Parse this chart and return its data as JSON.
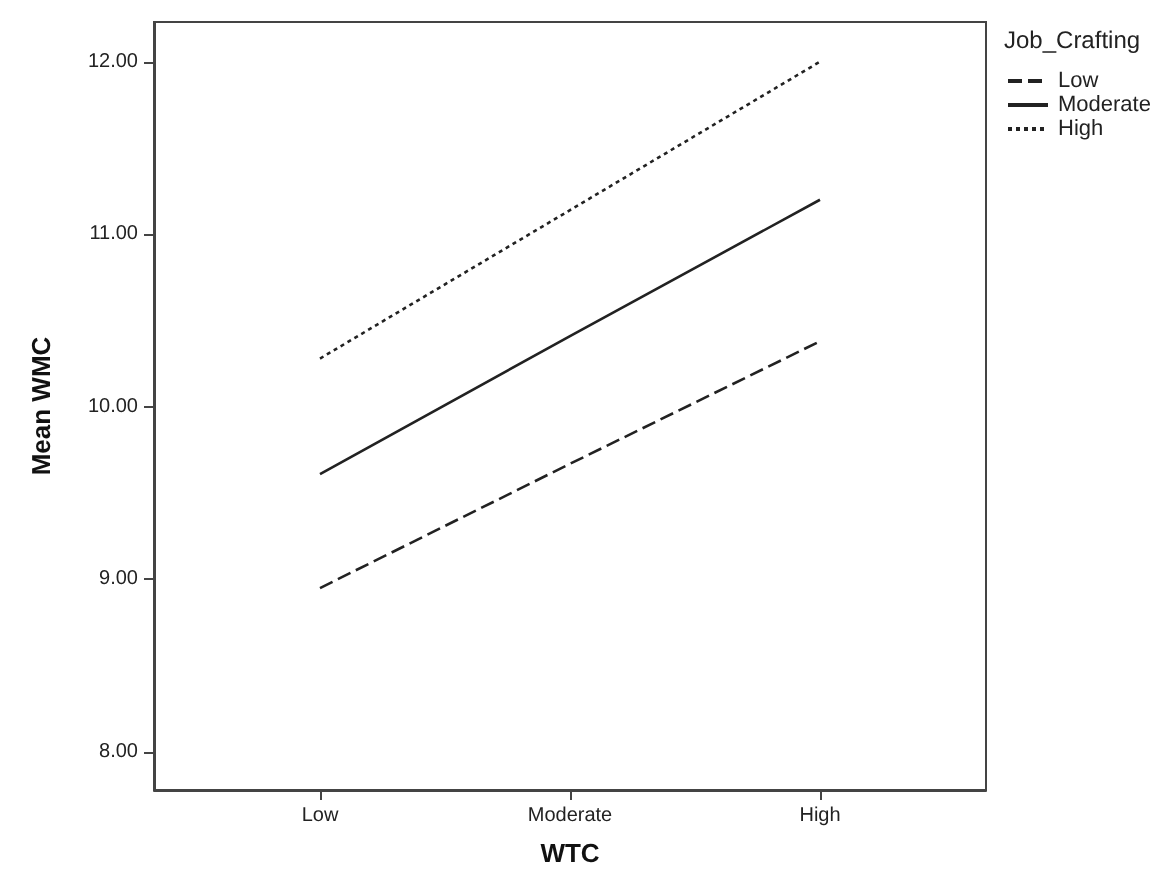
{
  "chart_data": {
    "type": "line",
    "xlabel": "WTC",
    "ylabel": "Mean WMC",
    "legend_title": "Job_Crafting",
    "legend": "top right",
    "grid": false,
    "marker": "none",
    "categories": [
      "Low",
      "Moderate",
      "High"
    ],
    "ylim": [
      7.78,
      12.23
    ],
    "yticks": [
      {
        "value": 8,
        "label": "8.00"
      },
      {
        "value": 9,
        "label": "9.00"
      },
      {
        "value": 10,
        "label": "10.00"
      },
      {
        "value": 11,
        "label": "11.00"
      },
      {
        "value": 12,
        "label": "12.00"
      }
    ],
    "series": [
      {
        "name": "Low",
        "color": "#222222",
        "line_style": "dashed",
        "values": [
          8.95,
          9.67,
          10.38
        ]
      },
      {
        "name": "Moderate",
        "color": "#222222",
        "line_style": "solid",
        "values": [
          9.61,
          10.41,
          11.2
        ]
      },
      {
        "name": "High",
        "color": "#222222",
        "line_style": "dotted",
        "values": [
          10.28,
          11.14,
          12.0
        ]
      }
    ]
  }
}
